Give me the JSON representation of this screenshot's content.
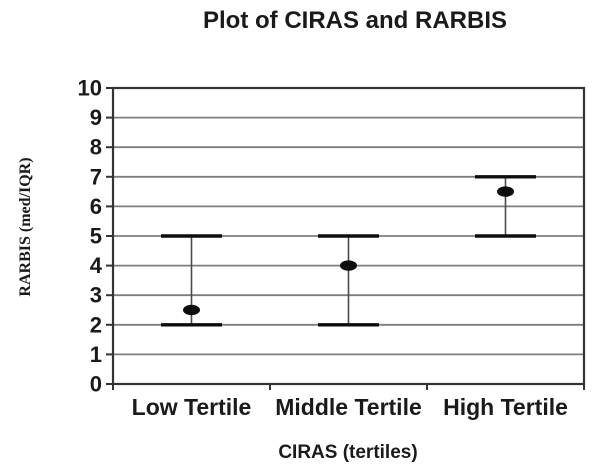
{
  "colors": {
    "background": "#ffffff",
    "axis": "#333333",
    "grid": "#7d7d7d",
    "errorbar_line": "#4a4a4a",
    "marker": "#0d0d0d",
    "text": "#1a1a1a"
  },
  "chart_data": {
    "type": "scatter",
    "subtype": "median-with-iqr-error-bars",
    "title": "Plot of CIRAS and RARBIS",
    "xlabel": "CIRAS (tertiles)",
    "ylabel": "RARBIS (med/IQR)",
    "categories": [
      "Low Tertile",
      "Middle Tertile",
      "High Tertile"
    ],
    "series": [
      {
        "name": "RARBIS med/IQR",
        "median": [
          2.5,
          4,
          6.5
        ],
        "lower": [
          2,
          2,
          5
        ],
        "upper": [
          5,
          5,
          7
        ]
      }
    ],
    "ylim": [
      0,
      10
    ],
    "ytick_labels": [
      "0",
      "1",
      "2",
      "3",
      "4",
      "5",
      "6",
      "7",
      "8",
      "9",
      "10"
    ],
    "grid": "horizontal",
    "legend": "none"
  }
}
